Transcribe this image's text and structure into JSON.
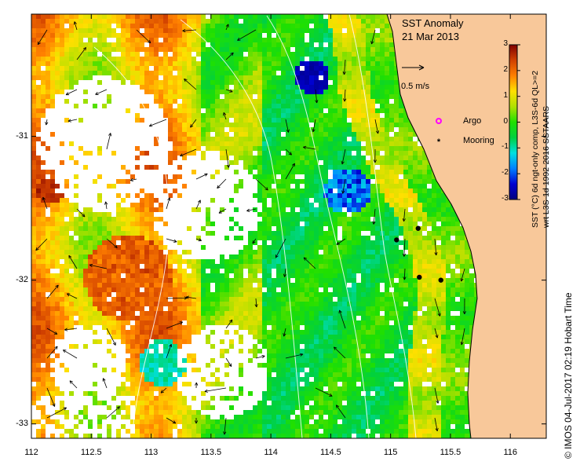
{
  "title": {
    "line1": "SST Anomaly",
    "line2": "21 Mar 2013"
  },
  "vector_scale": {
    "label": "0.5 m/s"
  },
  "legend": {
    "argo_label": "Argo",
    "mooring_label": "Mooring",
    "argo_color": "#ff00ff",
    "mooring_color": "#000000"
  },
  "colorbar": {
    "min": -3,
    "max": 3,
    "tick_labels": [
      "3",
      "2",
      "1",
      "0",
      "-1",
      "-2",
      "-3"
    ],
    "label_line1": "SST (°C) 6d ngt-only comp, L3S-6d QL>=2",
    "label_line2": "wrt L3S-1d 1992-2016 SSTAARS",
    "colors": [
      "#000080",
      "#0000d0",
      "#0080ff",
      "#00e0e0",
      "#00d040",
      "#20e000",
      "#b0e000",
      "#ffe000",
      "#ff8000",
      "#d04000",
      "#800000"
    ]
  },
  "axes": {
    "x_ticks": [
      "112",
      "112.5",
      "113",
      "113.5",
      "114",
      "114.5",
      "115",
      "115.5",
      "116"
    ],
    "y_ticks": [
      "-31",
      "-32",
      "-33"
    ],
    "x_range": [
      112,
      116.3
    ],
    "y_range": [
      -30.15,
      -33.1
    ]
  },
  "footer": {
    "credit": "© IMOS 04-Jul-2017 02:19 Hobart Time"
  },
  "moorings": [
    {
      "lon": 115.05,
      "lat": -31.72
    },
    {
      "lon": 115.23,
      "lat": -31.64
    },
    {
      "lon": 115.24,
      "lat": -31.98
    },
    {
      "lon": 115.42,
      "lat": -32.0
    }
  ],
  "colors": {
    "land": "#f8c89a",
    "coast": "#000000",
    "bathy": "#ffffff",
    "background": "#ffffff"
  }
}
